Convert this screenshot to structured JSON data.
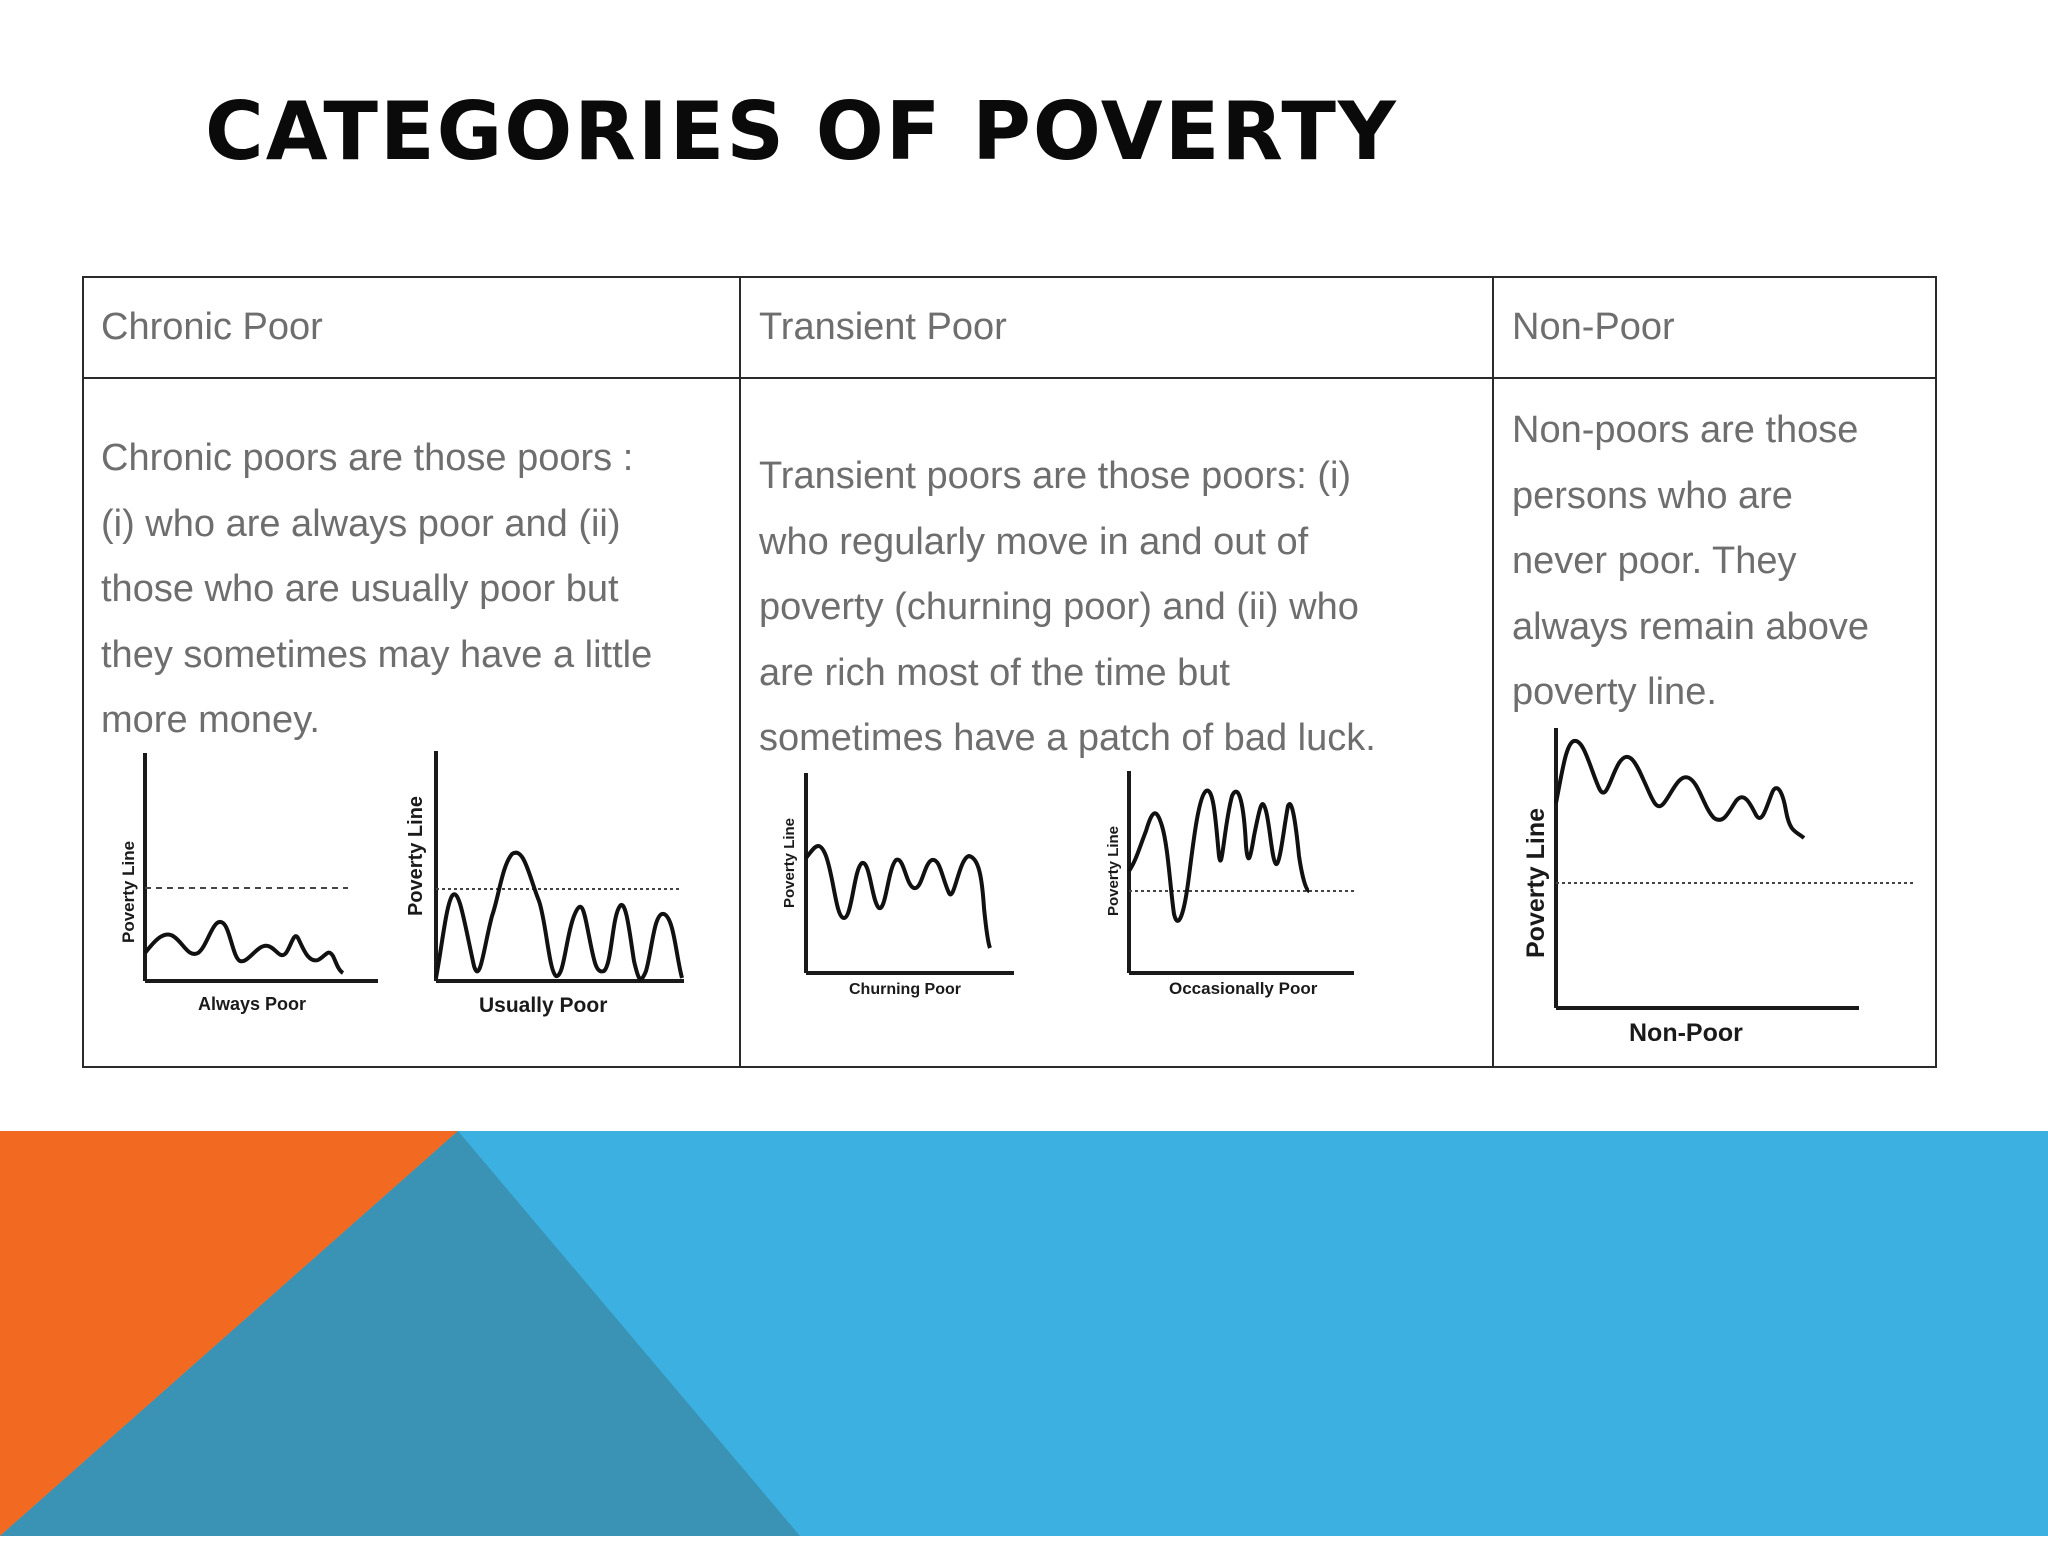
{
  "slide": {
    "title": "CATEGORIES OF POVERTY"
  },
  "table": {
    "columns": [
      {
        "header": "Chronic Poor",
        "text": [
          "Chronic poors are those poors :",
          "(i) who are always poor and (ii)",
          "those who are usually poor but",
          "they sometimes may have a little",
          "more money."
        ],
        "charts": [
          {
            "y_label": "Poverty Line",
            "x_label": "Always Poor"
          },
          {
            "y_label": "Poverty Line",
            "x_label": "Usually Poor"
          }
        ]
      },
      {
        "header": "Transient Poor",
        "text": [
          "Transient poors are those poors: (i)",
          "who regularly move in and out of",
          "poverty (churning poor) and (ii) who",
          "are rich most of the time but",
          "sometimes have a patch of bad luck."
        ],
        "charts": [
          {
            "y_label": "Poverty Line",
            "x_label": "Churning Poor"
          },
          {
            "y_label": "Poverty Line",
            "x_label": "Occasionally  Poor"
          }
        ]
      },
      {
        "header": "Non-Poor",
        "text": [
          "Non-poors are those",
          "persons who are",
          "never poor. They",
          "always remain above",
          "poverty line."
        ],
        "charts": [
          {
            "y_label": "Poverty Line",
            "x_label": "Non-Poor"
          }
        ]
      }
    ]
  },
  "theme": {
    "orange": "#f26a22",
    "blue": "#3cb0e0",
    "teal": "#3a93b5",
    "grid_line": "#2a2a2a",
    "body_text": "#6e6e6e"
  }
}
